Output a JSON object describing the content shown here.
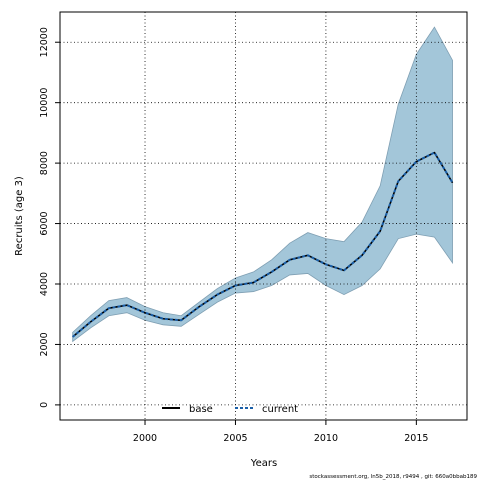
{
  "chart_data": {
    "type": "line",
    "xlabel": "Years",
    "ylabel": "Recruits (age 3)",
    "xlim": [
      1995.3,
      2017.8
    ],
    "ylim": [
      -500,
      13000
    ],
    "xticks": [
      2000,
      2005,
      2010,
      2015
    ],
    "yticks": [
      0,
      2000,
      4000,
      6000,
      8000,
      10000,
      12000
    ],
    "grid": true,
    "legend_position": "bottom-center",
    "x": [
      1996,
      1997,
      1998,
      1999,
      2000,
      2001,
      2002,
      2003,
      2004,
      2005,
      2006,
      2007,
      2008,
      2009,
      2010,
      2011,
      2012,
      2013,
      2014,
      2015,
      2016,
      2017
    ],
    "series": [
      {
        "name": "base",
        "color": "#000000",
        "line_style": "solid",
        "values": [
          2250,
          2750,
          3200,
          3300,
          3050,
          2850,
          2800,
          3250,
          3650,
          3950,
          4050,
          4400,
          4800,
          4950,
          4650,
          4450,
          4950,
          5750,
          7400,
          8050,
          8350,
          7350
        ]
      },
      {
        "name": "current",
        "color": "#1a5fa8",
        "line_style": "dashed",
        "values": [
          2250,
          2750,
          3200,
          3300,
          3050,
          2850,
          2800,
          3250,
          3650,
          3950,
          4050,
          4400,
          4800,
          4950,
          4650,
          4450,
          4950,
          5750,
          7400,
          8050,
          8350,
          7350
        ]
      }
    ],
    "confidence_band": {
      "color": "#a3c6d9",
      "edge_color": "#7f9fb3",
      "upper": [
        2400,
        2950,
        3450,
        3550,
        3250,
        3050,
        2950,
        3400,
        3850,
        4200,
        4400,
        4800,
        5350,
        5700,
        5500,
        5400,
        6050,
        7250,
        9950,
        11600,
        12500,
        11400
      ],
      "lower": [
        2100,
        2550,
        2950,
        3050,
        2800,
        2650,
        2600,
        3000,
        3400,
        3700,
        3750,
        3950,
        4300,
        4350,
        3950,
        3650,
        3950,
        4500,
        5500,
        5650,
        5550,
        4700
      ]
    }
  },
  "footer": {
    "note": "stockassessment.org, ln5b_2018, r9494 , git: 660a0bbab189"
  }
}
